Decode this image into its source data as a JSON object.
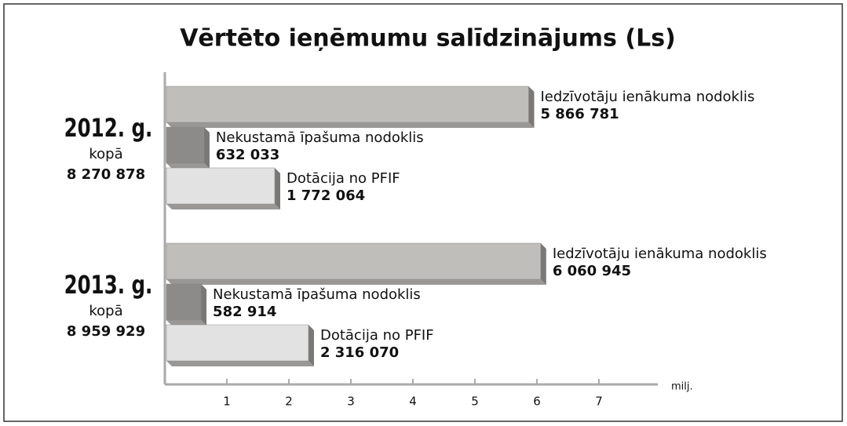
{
  "chart_data": {
    "type": "bar",
    "orientation": "horizontal",
    "title": "Vērtēto ieņēmumu salīdzinājums (Ls)",
    "categories": [
      "2012. g.",
      "2013. g."
    ],
    "category_sublabel": "kopā",
    "group_totals": [
      "8 270 878",
      "8 959 929"
    ],
    "series": [
      {
        "name": "Iedzīvotāju ienākuma nodoklis",
        "color": "#c0bebb",
        "values": [
          5.866781,
          6.060945
        ],
        "value_labels": [
          "5 866 781",
          "6 060 945"
        ]
      },
      {
        "name": "Nekustamā īpašuma nodoklis",
        "color": "#8d8b89",
        "values": [
          0.632033,
          0.582914
        ],
        "value_labels": [
          "632 033",
          "582 914"
        ]
      },
      {
        "name": "Dotācija no PFIF",
        "color": "#e2e2e2",
        "values": [
          1.772064,
          2.31607
        ],
        "value_labels": [
          "1 772 064",
          "2 316 070"
        ]
      }
    ],
    "xlim": [
      0,
      8
    ],
    "xticks": [
      1,
      2,
      3,
      4,
      5,
      6,
      7
    ],
    "x_unit": "milj."
  }
}
